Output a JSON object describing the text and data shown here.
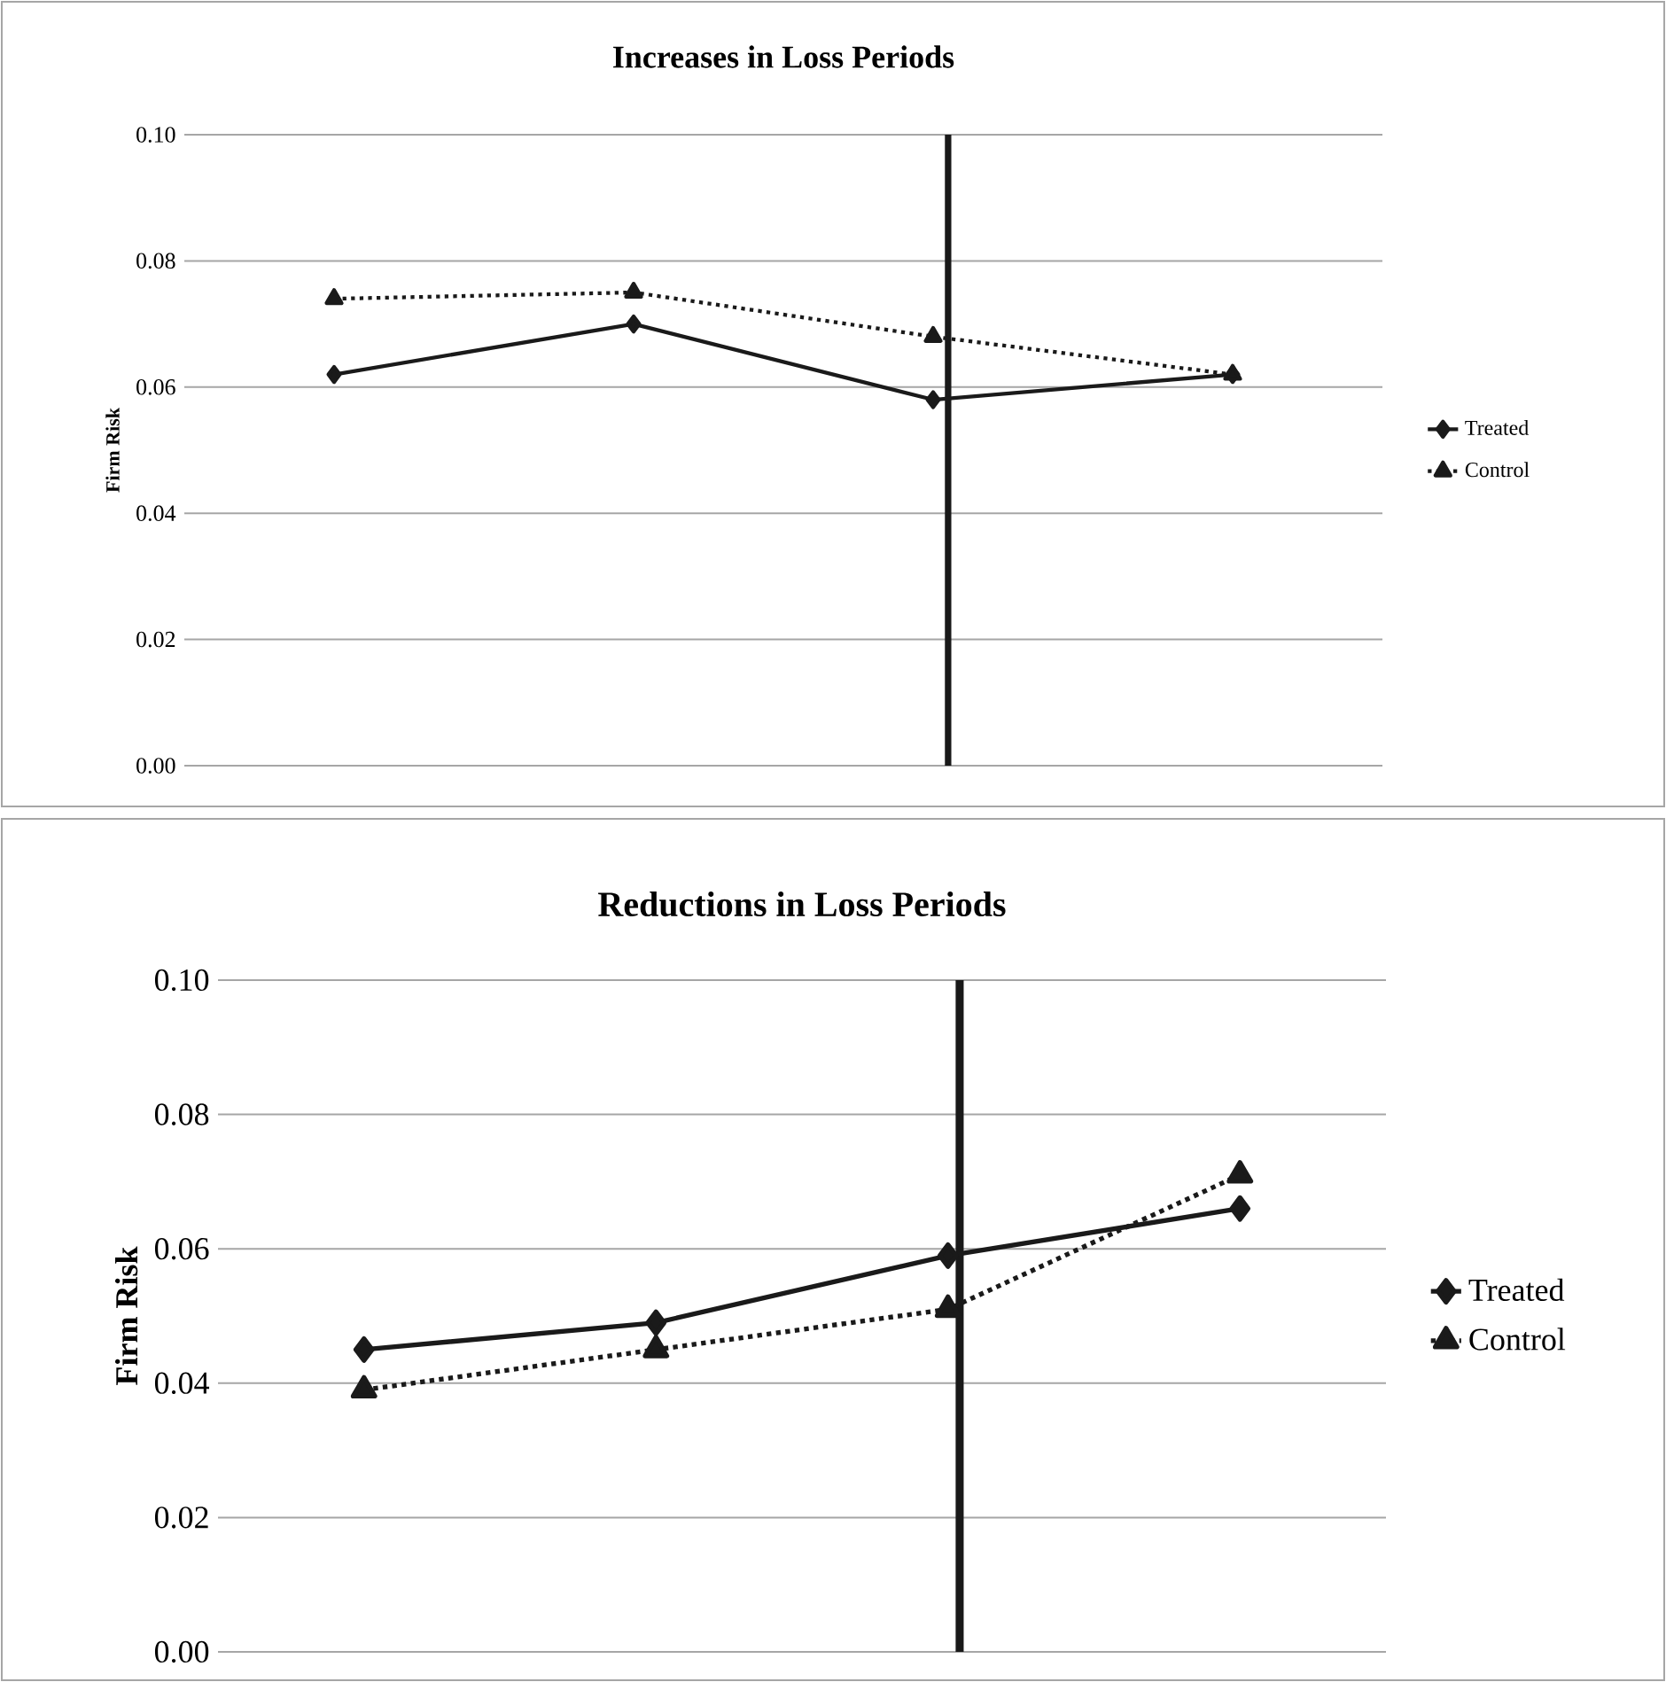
{
  "chart_data": [
    {
      "type": "line",
      "title": "Increases in Loss Periods",
      "ylabel": "Firm Risk",
      "categories": [
        null,
        null,
        null,
        null
      ],
      "series": [
        {
          "name": "Treated",
          "color": "#1a1a1a",
          "marker": "diamond",
          "line_style": "solid",
          "values": [
            0.062,
            0.07,
            0.058,
            0.062
          ]
        },
        {
          "name": "Control",
          "color": "#1a1a1a",
          "marker": "triangle",
          "line_style": "dotted",
          "values": [
            0.074,
            0.075,
            0.068,
            0.062
          ]
        }
      ],
      "ylim": [
        0,
        0.1
      ],
      "yticks": [
        {
          "value": 0,
          "label": "0.00"
        },
        {
          "value": 0.02,
          "label": "0.02"
        },
        {
          "value": 0.04,
          "label": "0.04"
        },
        {
          "value": 0.06,
          "label": "0.06"
        },
        {
          "value": 0.08,
          "label": "0.08"
        },
        {
          "value": 0.1,
          "label": "0.10"
        }
      ],
      "grid": "y",
      "legend": "right",
      "tick_labels": "y"
    },
    {
      "type": "line",
      "title": "Reductions in Loss Periods",
      "ylabel": "Firm Risk",
      "categories": [
        null,
        null,
        null,
        null
      ],
      "series": [
        {
          "name": "Treated",
          "color": "#1a1a1a",
          "marker": "diamond",
          "line_style": "solid",
          "values": [
            0.045,
            0.049,
            0.059,
            0.066
          ]
        },
        {
          "name": "Control",
          "color": "#1a1a1a",
          "marker": "triangle",
          "line_style": "dotted",
          "values": [
            0.039,
            0.045,
            0.051,
            0.071
          ]
        }
      ],
      "ylim": [
        0,
        0.1
      ],
      "yticks": [
        {
          "value": 0,
          "label": "0.00"
        },
        {
          "value": 0.02,
          "label": "0.02"
        },
        {
          "value": 0.04,
          "label": "0.04"
        },
        {
          "value": 0.06,
          "label": "0.06"
        },
        {
          "value": 0.08,
          "label": "0.08"
        },
        {
          "value": 0.1,
          "label": "0.10"
        }
      ],
      "grid": "y",
      "legend": "right",
      "tick_labels": "y"
    }
  ]
}
